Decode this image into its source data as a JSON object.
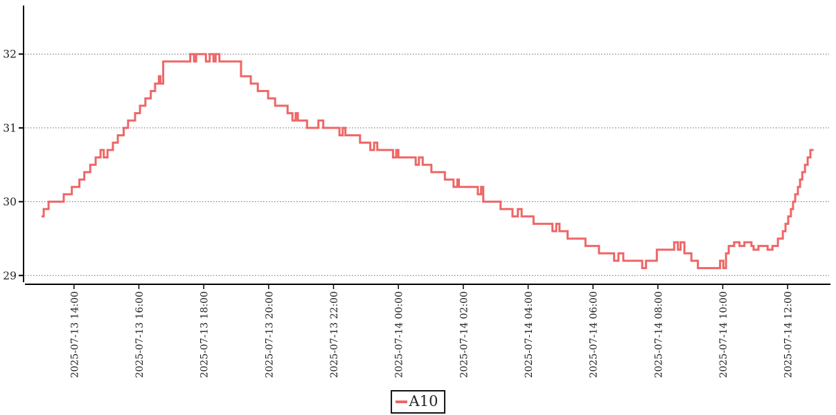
{
  "legend": {
    "label": "A10"
  },
  "colors": {
    "series": "#ee6666",
    "axis": "#000000",
    "grid": "#666666",
    "text": "#222222",
    "legend_border": "#111111",
    "background": "#ffffff"
  },
  "chart_data": {
    "type": "line",
    "step": "post",
    "title": "",
    "xlabel": "",
    "ylabel": "",
    "grid": "horizontal-dotted",
    "legend_position": "bottom-center",
    "yticks": [
      29,
      30,
      31,
      32
    ],
    "ylim": [
      28.88,
      32.66
    ],
    "xticks": [
      "2025-07-13 14:00",
      "2025-07-13 16:00",
      "2025-07-13 18:00",
      "2025-07-13 20:00",
      "2025-07-13 22:00",
      "2025-07-14 00:00",
      "2025-07-14 02:00",
      "2025-07-14 04:00",
      "2025-07-14 06:00",
      "2025-07-14 08:00",
      "2025-07-14 10:00",
      "2025-07-14 12:00"
    ],
    "xtick_interval_minutes": 120,
    "series": [
      {
        "name": "A10",
        "color": "#ee6666",
        "t0": "2025-07-13 13:00",
        "t_unit": "minutes_since_t0",
        "t_end": 1428,
        "points": [
          [
            0,
            29.8
          ],
          [
            4,
            29.9
          ],
          [
            13,
            30.0
          ],
          [
            41,
            30.1
          ],
          [
            56,
            30.2
          ],
          [
            70,
            30.3
          ],
          [
            79,
            30.4
          ],
          [
            90,
            30.5
          ],
          [
            100,
            30.6
          ],
          [
            109,
            30.7
          ],
          [
            115,
            30.6
          ],
          [
            122,
            30.7
          ],
          [
            132,
            30.8
          ],
          [
            141,
            30.9
          ],
          [
            152,
            31.0
          ],
          [
            160,
            31.1
          ],
          [
            173,
            31.2
          ],
          [
            182,
            31.3
          ],
          [
            192,
            31.4
          ],
          [
            202,
            31.5
          ],
          [
            210,
            31.6
          ],
          [
            217,
            31.7
          ],
          [
            220,
            31.6
          ],
          [
            225,
            31.9
          ],
          [
            275,
            32.0
          ],
          [
            282,
            31.9
          ],
          [
            286,
            32.0
          ],
          [
            304,
            31.9
          ],
          [
            311,
            32.0
          ],
          [
            318,
            31.9
          ],
          [
            322,
            32.0
          ],
          [
            329,
            31.9
          ],
          [
            369,
            31.7
          ],
          [
            387,
            31.6
          ],
          [
            400,
            31.5
          ],
          [
            419,
            31.4
          ],
          [
            432,
            31.3
          ],
          [
            455,
            31.2
          ],
          [
            464,
            31.1
          ],
          [
            470,
            31.2
          ],
          [
            474,
            31.1
          ],
          [
            491,
            31.0
          ],
          [
            512,
            31.1
          ],
          [
            521,
            31.0
          ],
          [
            551,
            30.9
          ],
          [
            557,
            31.0
          ],
          [
            562,
            30.9
          ],
          [
            589,
            30.8
          ],
          [
            608,
            30.7
          ],
          [
            615,
            30.8
          ],
          [
            621,
            30.7
          ],
          [
            650,
            30.6
          ],
          [
            656,
            30.7
          ],
          [
            660,
            30.6
          ],
          [
            692,
            30.5
          ],
          [
            698,
            30.6
          ],
          [
            705,
            30.5
          ],
          [
            721,
            30.4
          ],
          [
            746,
            30.3
          ],
          [
            762,
            30.2
          ],
          [
            769,
            30.3
          ],
          [
            772,
            30.2
          ],
          [
            807,
            30.1
          ],
          [
            813,
            30.2
          ],
          [
            817,
            30.0
          ],
          [
            849,
            29.9
          ],
          [
            871,
            29.8
          ],
          [
            881,
            29.9
          ],
          [
            888,
            29.8
          ],
          [
            910,
            29.7
          ],
          [
            945,
            29.6
          ],
          [
            952,
            29.7
          ],
          [
            958,
            29.6
          ],
          [
            973,
            29.5
          ],
          [
            1006,
            29.4
          ],
          [
            1031,
            29.3
          ],
          [
            1059,
            29.2
          ],
          [
            1067,
            29.3
          ],
          [
            1076,
            29.2
          ],
          [
            1111,
            29.1
          ],
          [
            1118,
            29.2
          ],
          [
            1138,
            29.35
          ],
          [
            1170,
            29.45
          ],
          [
            1177,
            29.35
          ],
          [
            1182,
            29.45
          ],
          [
            1189,
            29.3
          ],
          [
            1202,
            29.2
          ],
          [
            1214,
            29.1
          ],
          [
            1255,
            29.2
          ],
          [
            1261,
            29.1
          ],
          [
            1266,
            29.3
          ],
          [
            1271,
            29.4
          ],
          [
            1281,
            29.45
          ],
          [
            1291,
            29.4
          ],
          [
            1300,
            29.45
          ],
          [
            1313,
            29.4
          ],
          [
            1317,
            29.35
          ],
          [
            1326,
            29.4
          ],
          [
            1343,
            29.35
          ],
          [
            1352,
            29.4
          ],
          [
            1362,
            29.5
          ],
          [
            1371,
            29.6
          ],
          [
            1376,
            29.7
          ],
          [
            1381,
            29.8
          ],
          [
            1386,
            29.9
          ],
          [
            1390,
            30.0
          ],
          [
            1394,
            30.1
          ],
          [
            1399,
            30.2
          ],
          [
            1403,
            30.3
          ],
          [
            1407,
            30.4
          ],
          [
            1412,
            30.5
          ],
          [
            1417,
            30.6
          ],
          [
            1422,
            30.7
          ]
        ]
      }
    ]
  }
}
